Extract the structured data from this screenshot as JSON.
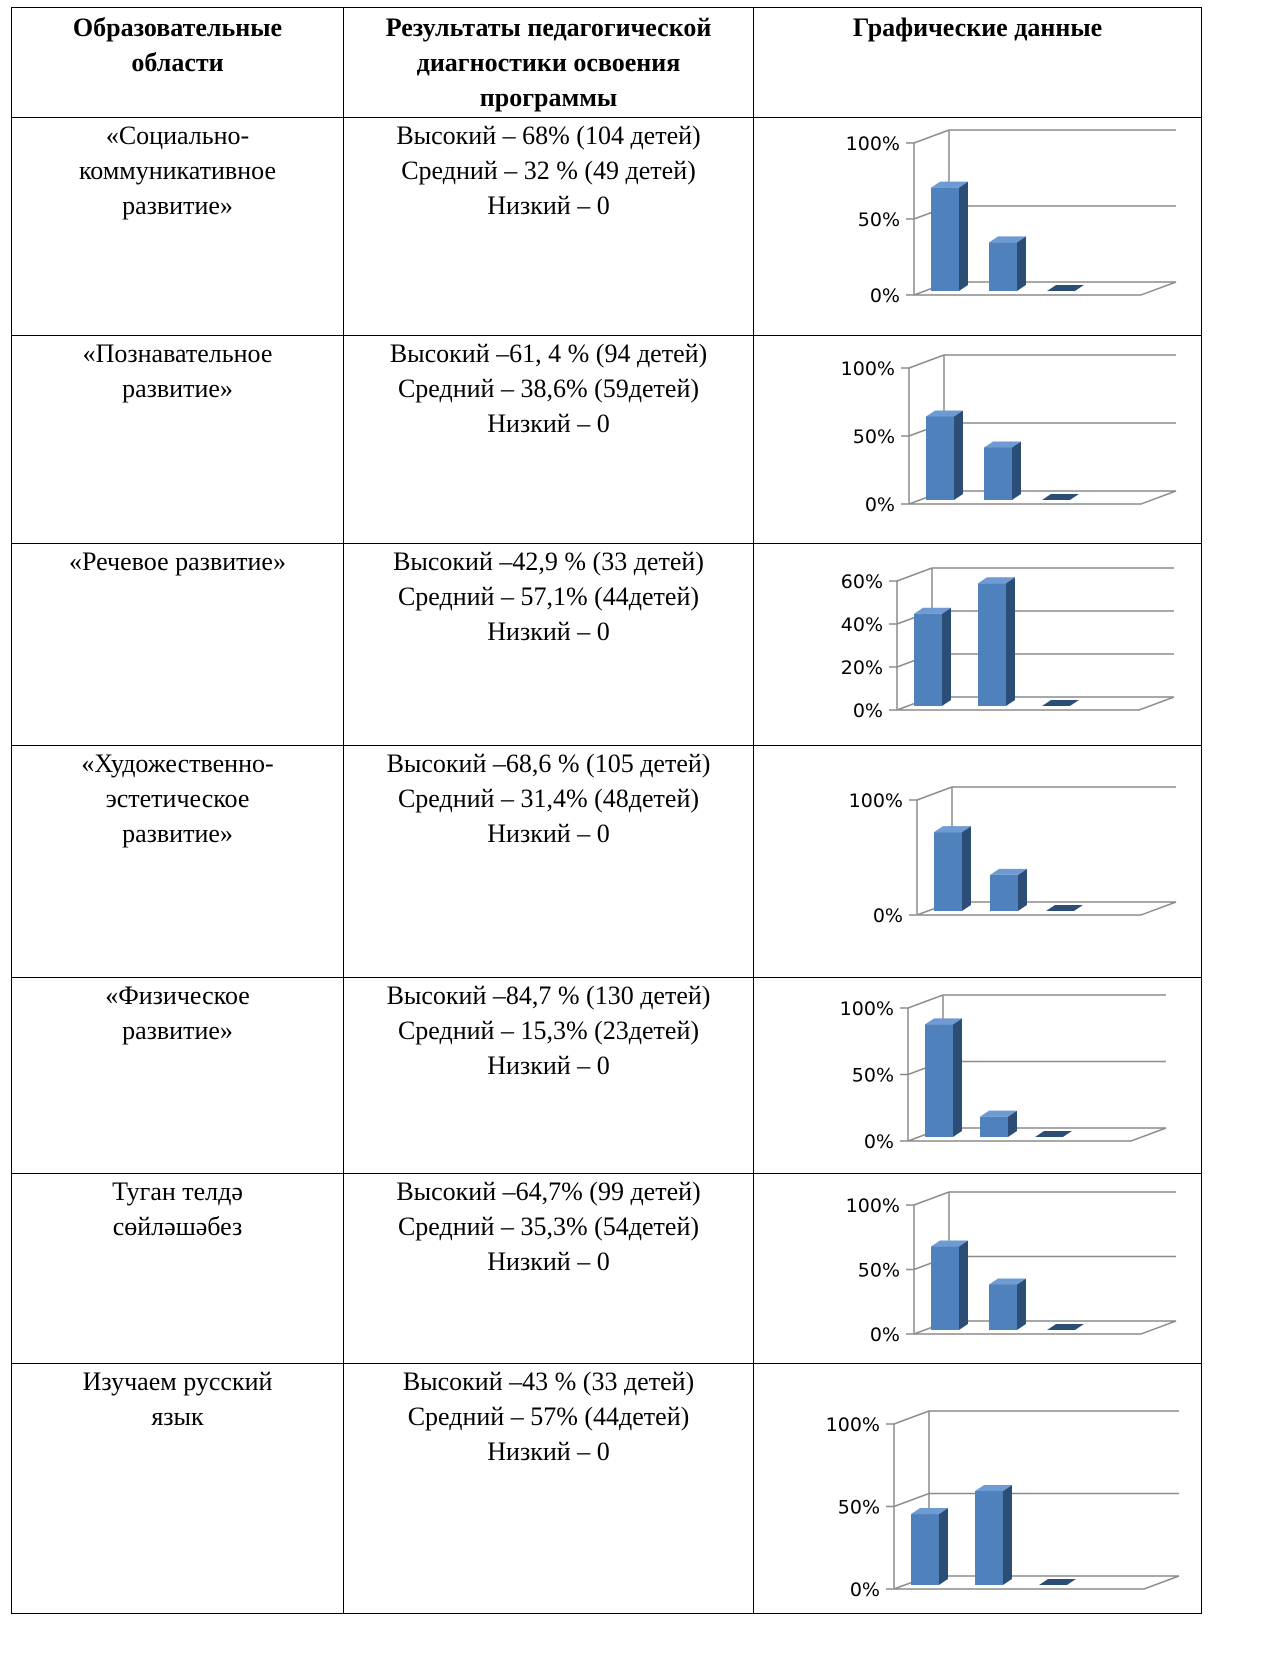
{
  "headers": {
    "area": "Образовательные области",
    "results": "Результаты педагогической диагностики освоения программы",
    "chart": "Графические данные"
  },
  "rows": [
    {
      "area": [
        "«Социально-",
        "коммуникативное",
        "развитие»"
      ],
      "results": [
        "Высокий – 68%  (104 детей)",
        "Средний – 32 % (49 детей)",
        "Низкий – 0"
      ]
    },
    {
      "area": [
        "«Познавательное",
        "развитие»"
      ],
      "results": [
        "Высокий –61, 4 % (94 детей)",
        "Средний – 38,6% (59детей)",
        "Низкий – 0"
      ]
    },
    {
      "area": [
        "«Речевое развитие»"
      ],
      "results": [
        "Высокий –42,9 % (33 детей)",
        "Средний – 57,1% (44детей)",
        "Низкий – 0"
      ]
    },
    {
      "area": [
        "«Художественно-",
        "эстетическое",
        "развитие»"
      ],
      "results": [
        "Высокий –68,6 % (105 детей)",
        "Средний – 31,4% (48детей)",
        "Низкий – 0"
      ]
    },
    {
      "area": [
        "«Физическое",
        "развитие»"
      ],
      "results": [
        "Высокий –84,7 % (130 детей)",
        "Средний – 15,3% (23детей)",
        "Низкий – 0"
      ]
    },
    {
      "area": [
        "Туган телдә",
        "сөйләшәбез"
      ],
      "results": [
        "Высокий –64,7% (99 детей)",
        "Средний – 35,3% (54детей)",
        "Низкий – 0"
      ]
    },
    {
      "area": [
        "Изучаем русский",
        "язык"
      ],
      "results": [
        "Высокий –43 % (33 детей)",
        "Средний – 57% (44детей)",
        "Низкий – 0"
      ]
    }
  ],
  "chart_data": [
    {
      "type": "bar",
      "bar_color": "#4F81BD",
      "ylim": [
        0,
        1
      ],
      "ticks": [
        0,
        0.5,
        1
      ],
      "tick_labels": [
        "0%",
        "50%",
        "100%"
      ],
      "values": [
        0.68,
        0.32,
        0
      ]
    },
    {
      "type": "bar",
      "bar_color": "#4F81BD",
      "ylim": [
        0,
        1
      ],
      "ticks": [
        0,
        0.5,
        1
      ],
      "tick_labels": [
        "0%",
        "50%",
        "100%"
      ],
      "values": [
        0.614,
        0.386,
        0
      ]
    },
    {
      "type": "bar",
      "bar_color": "#4F81BD",
      "ylim": [
        0,
        0.6
      ],
      "ticks": [
        0,
        0.2,
        0.4,
        0.6
      ],
      "tick_labels": [
        "0%",
        "20%",
        "40%",
        "60%"
      ],
      "values": [
        0.429,
        0.571,
        0
      ]
    },
    {
      "type": "bar",
      "bar_color": "#4F81BD",
      "ylim": [
        0,
        1
      ],
      "ticks": [
        0,
        1
      ],
      "tick_labels": [
        "0%",
        "100%"
      ],
      "values": [
        0.686,
        0.314,
        0
      ]
    },
    {
      "type": "bar",
      "bar_color": "#4F81BD",
      "ylim": [
        0,
        1
      ],
      "ticks": [
        0,
        0.5,
        1
      ],
      "tick_labels": [
        "0%",
        "50%",
        "100%"
      ],
      "values": [
        0.847,
        0.153,
        0
      ]
    },
    {
      "type": "bar",
      "bar_color": "#4F81BD",
      "ylim": [
        0,
        1
      ],
      "ticks": [
        0,
        0.5,
        1
      ],
      "tick_labels": [
        "0%",
        "50%",
        "100%"
      ],
      "values": [
        0.647,
        0.353,
        0
      ]
    },
    {
      "type": "bar",
      "bar_color": "#4F81BD",
      "ylim": [
        0,
        1
      ],
      "ticks": [
        0,
        0.5,
        1
      ],
      "tick_labels": [
        "0%",
        "50%",
        "100%"
      ],
      "values": [
        0.43,
        0.57,
        0
      ]
    }
  ]
}
